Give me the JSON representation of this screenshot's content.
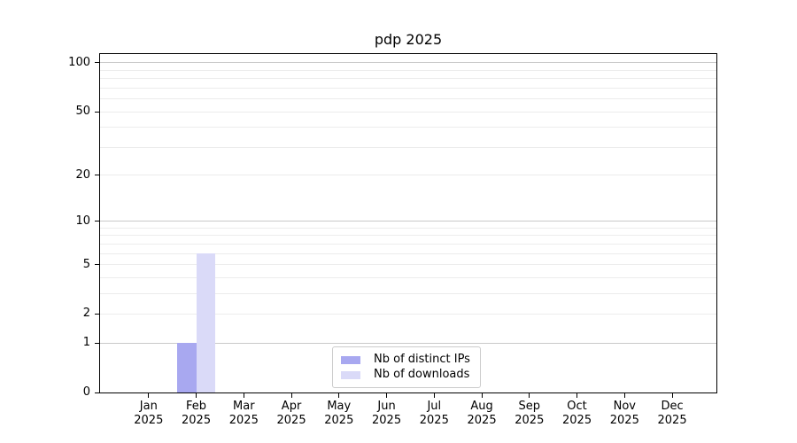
{
  "chart_data": {
    "type": "bar",
    "title": "pdp 2025",
    "x_tick_labels_line1": [
      "Jan",
      "Feb",
      "Mar",
      "Apr",
      "May",
      "Jun",
      "Jul",
      "Aug",
      "Sep",
      "Oct",
      "Nov",
      "Dec"
    ],
    "x_tick_labels_line2": "2025",
    "y_axis": {
      "scale": "log10(1+y)",
      "tick_labels": [
        "100",
        "50",
        "20",
        "10",
        "5",
        "2",
        "1",
        "0"
      ],
      "tick_values": [
        100,
        50,
        20,
        10,
        5,
        2,
        1,
        0
      ],
      "major_gridlines": [
        100,
        10,
        1
      ],
      "minor_gridlines": [
        90,
        80,
        70,
        60,
        50,
        40,
        30,
        20,
        9,
        8,
        7,
        6,
        5,
        4,
        3,
        2
      ],
      "range": [
        0,
        113
      ],
      "grid": true
    },
    "categories": [
      "Jan 2025",
      "Feb 2025",
      "Mar 2025",
      "Apr 2025",
      "May 2025",
      "Jun 2025",
      "Jul 2025",
      "Aug 2025",
      "Sep 2025",
      "Oct 2025",
      "Nov 2025",
      "Dec 2025"
    ],
    "series": [
      {
        "name": "Nb of distinct IPs",
        "color": "#a8a8f0",
        "values": [
          0,
          1,
          0,
          0,
          0,
          0,
          0,
          0,
          0,
          0,
          0,
          0
        ]
      },
      {
        "name": "Nb of downloads",
        "color": "#dadaf8",
        "values": [
          0,
          6,
          0,
          0,
          0,
          0,
          0,
          0,
          0,
          0,
          0,
          0
        ]
      }
    ],
    "legend": {
      "position": "lower center"
    },
    "colors": {
      "grid_major": "#c9c9c9",
      "grid_minor": "#ececec",
      "axis": "#000000",
      "background": "#ffffff"
    }
  }
}
